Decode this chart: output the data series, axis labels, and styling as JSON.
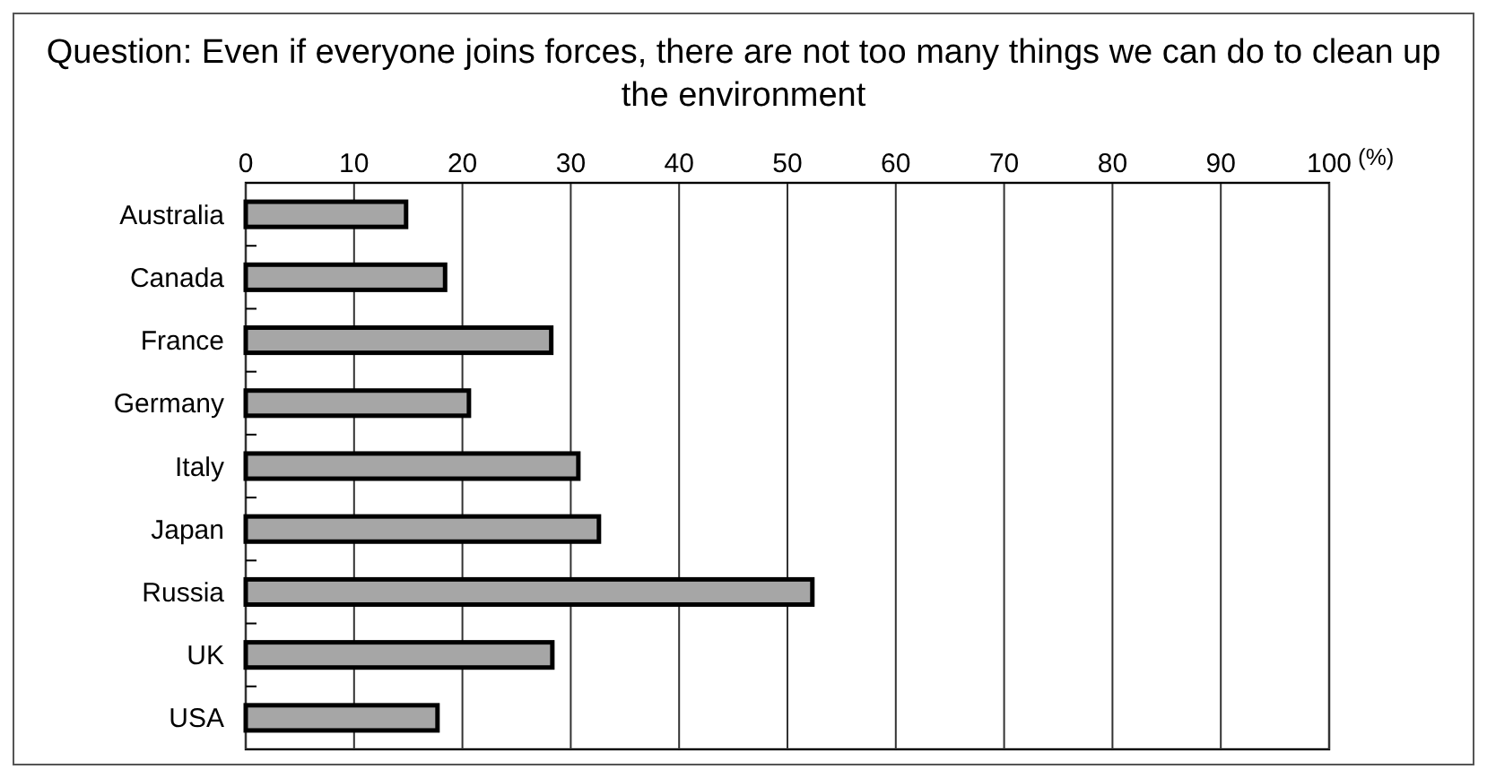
{
  "chart_data": {
    "type": "bar",
    "orientation": "horizontal",
    "title": "Question: Even if everyone joins forces, there are not too many things we can do to clean up the environment",
    "xlabel": "(%)",
    "categories": [
      "Australia",
      "Canada",
      "France",
      "Germany",
      "Italy",
      "Japan",
      "Russia",
      "UK",
      "USA"
    ],
    "values": [
      14.8,
      18.4,
      28.2,
      20.6,
      30.7,
      32.6,
      52.3,
      28.3,
      17.7
    ],
    "color": "#a6a6a6",
    "xlim": [
      0,
      100
    ],
    "xticks": [
      0,
      10,
      20,
      30,
      40,
      50,
      60,
      70,
      80,
      90,
      100
    ],
    "grid": "x"
  }
}
